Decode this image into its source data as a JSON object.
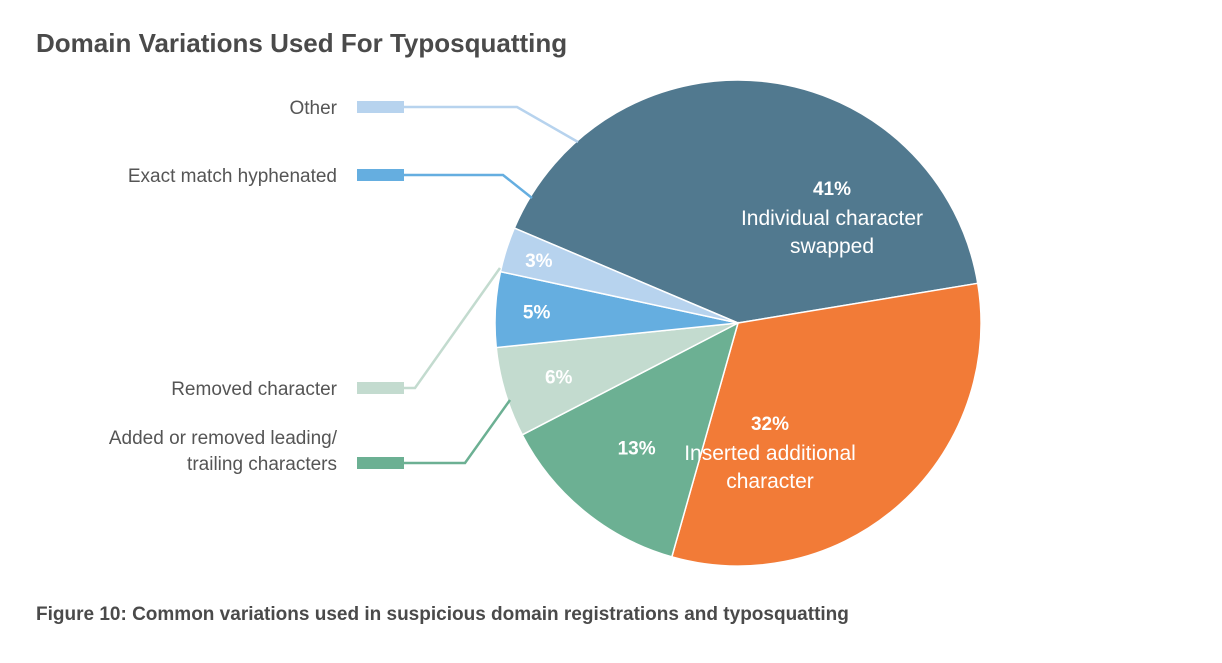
{
  "title": "Domain Variations Used For Typosquatting",
  "caption": "Figure 10: Common variations used in suspicious domain registrations and typosquatting",
  "chart_data": {
    "type": "pie",
    "slices": [
      {
        "name": "Individual character swapped",
        "value": 41,
        "label": "41%",
        "color": "#51798f",
        "desc": [
          "Individual character",
          "swapped"
        ]
      },
      {
        "name": "Inserted additional character",
        "value": 32,
        "label": "32%",
        "color": "#f27b37",
        "desc": [
          "Inserted additional",
          "character"
        ]
      },
      {
        "name": "Added or removed leading/ trailing characters",
        "value": 13,
        "label": "13%",
        "color": "#6cb093",
        "legend": [
          "Added or removed leading/",
          "trailing characters"
        ]
      },
      {
        "name": "Removed character",
        "value": 6,
        "label": "6%",
        "color": "#c3dbcf",
        "legend": [
          "Removed character"
        ]
      },
      {
        "name": "Exact match hyphenated",
        "value": 5,
        "label": "5%",
        "color": "#65aee0",
        "legend": [
          "Exact match hyphenated"
        ]
      },
      {
        "name": "Other",
        "value": 3,
        "label": "3%",
        "color": "#b7d3ee",
        "legend": [
          "Other"
        ]
      }
    ]
  }
}
